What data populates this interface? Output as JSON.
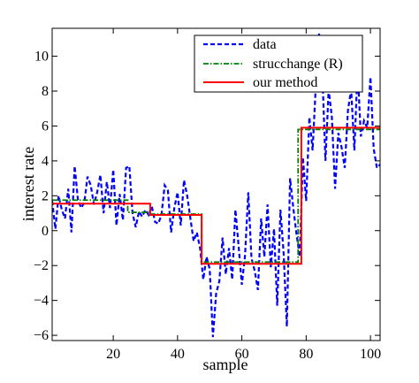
{
  "chart_data": {
    "type": "line",
    "title": "",
    "xlabel": "sample",
    "ylabel": "interest rate",
    "xlim": [
      1,
      103
    ],
    "ylim": [
      -6.3,
      11.6
    ],
    "xticks": [
      20,
      40,
      60,
      80,
      100
    ],
    "yticks": [
      -6,
      -4,
      -2,
      0,
      2,
      4,
      6,
      8,
      10
    ],
    "grid": false,
    "legend_position": "top-right",
    "series": [
      {
        "name": "data",
        "color": "#0000ff",
        "style": "dashed",
        "x": [
          1,
          2,
          3,
          4,
          5,
          6,
          7,
          8,
          9,
          10,
          11,
          12,
          13,
          14,
          15,
          16,
          17,
          18,
          19,
          20,
          21,
          22,
          23,
          24,
          25,
          26,
          27,
          28,
          29,
          30,
          31,
          32,
          33,
          34,
          35,
          36,
          37,
          38,
          39,
          40,
          41,
          42,
          43,
          44,
          45,
          46,
          47,
          48,
          49,
          50,
          51,
          52,
          53,
          54,
          55,
          56,
          57,
          58,
          59,
          60,
          61,
          62,
          63,
          64,
          65,
          66,
          67,
          68,
          69,
          70,
          71,
          72,
          73,
          74,
          75,
          76,
          77,
          78,
          79,
          80,
          81,
          82,
          83,
          84,
          85,
          86,
          87,
          88,
          89,
          90,
          91,
          92,
          93,
          94,
          95,
          96,
          97,
          98,
          99,
          100,
          101,
          102,
          103
        ],
        "y": [
          1.7,
          0.1,
          2.0,
          1.2,
          0.7,
          2.4,
          -0.1,
          3.7,
          1.8,
          1.3,
          1.6,
          3.1,
          2.6,
          1.5,
          2.2,
          3.2,
          1.0,
          2.8,
          1.3,
          3.5,
          0.3,
          2.1,
          0.6,
          3.6,
          3.7,
          1.0,
          0.2,
          1.1,
          0.8,
          1.2,
          0.9,
          1.4,
          0.5,
          0.4,
          0.9,
          2.6,
          2.3,
          -0.1,
          1.3,
          2.2,
          0.3,
          2.9,
          2.0,
          0.7,
          -0.6,
          -0.1,
          -1.0,
          -2.8,
          -1.5,
          -2.2,
          -6.1,
          -3.6,
          -2.9,
          -0.4,
          -2.5,
          -1.0,
          -2.8,
          1.2,
          -0.9,
          -3.1,
          -1.4,
          2.2,
          -1.6,
          -2.3,
          -3.4,
          0.7,
          -1.5,
          1.5,
          -2.1,
          0.1,
          -4.3,
          1.2,
          -1.3,
          -5.5,
          3.0,
          1.3,
          -0.2,
          -1.5,
          4.2,
          1.7,
          6.5,
          4.6,
          8.3,
          11.3,
          9.2,
          4.0,
          8.1,
          6.5,
          2.4,
          5.6,
          4.8,
          3.6,
          6.9,
          8.1,
          4.6,
          9.3,
          5.4,
          6.3,
          5.9,
          8.8,
          4.7,
          3.6,
          3.8
        ]
      },
      {
        "name": "strucchange (R)",
        "color": "#008000",
        "style": "dashdot",
        "x": [
          1,
          24.5,
          24.5,
          31.5,
          31.5,
          47.5,
          47.5,
          77.5,
          77.5,
          103
        ],
        "y": [
          1.75,
          1.75,
          1.05,
          1.05,
          0.95,
          0.95,
          -1.8,
          -1.8,
          5.8,
          5.8
        ]
      },
      {
        "name": "our method",
        "color": "#ff0000",
        "style": "solid",
        "x": [
          1,
          31.5,
          31.5,
          47.5,
          47.5,
          78.5,
          78.5,
          103
        ],
        "y": [
          1.55,
          1.55,
          0.9,
          0.9,
          -1.9,
          -1.9,
          5.9,
          5.9
        ]
      }
    ]
  }
}
